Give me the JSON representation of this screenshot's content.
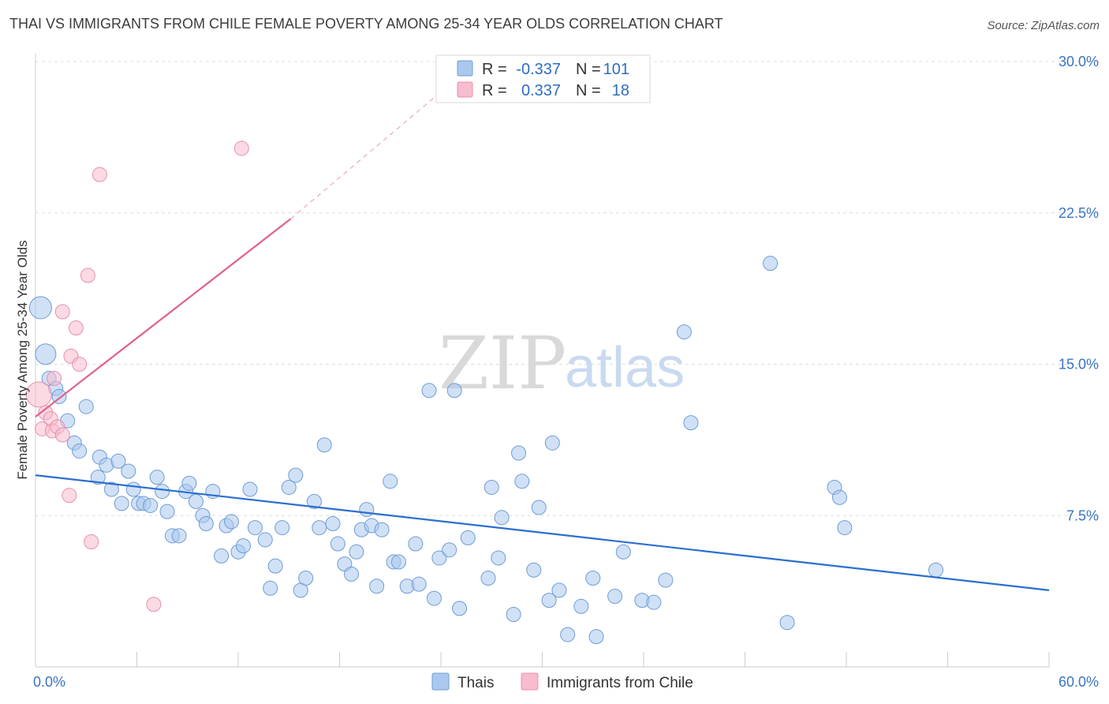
{
  "title": "THAI VS IMMIGRANTS FROM CHILE FEMALE POVERTY AMONG 25-34 YEAR OLDS CORRELATION CHART",
  "source": "Source: ZipAtlas.com",
  "watermark": {
    "zip": "ZIP",
    "atlas": "atlas"
  },
  "colors": {
    "thai_fill": "#aac8ee",
    "thai_stroke": "#6f9bd6",
    "thai_line": "#2a6fcf",
    "chile_fill": "#f7bccd",
    "chile_stroke": "#e890aa",
    "chile_line": "#e0628a",
    "grid": "#dddddd",
    "axis_text": "#3a74c4"
  },
  "legend": {
    "rows": [
      {
        "r_label": "R =",
        "r_value": "-0.337",
        "n_label": "N =",
        "n_value": "101"
      },
      {
        "r_label": "R =",
        "r_value": "0.337",
        "n_label": "N =",
        "n_value": "18"
      }
    ]
  },
  "bottom_legend": {
    "thai": "Thais",
    "chile": "Immigrants from Chile"
  },
  "chart_data": {
    "type": "scatter",
    "ylabel": "Female Poverty Among 25-34 Year Olds",
    "xlim": [
      0,
      60
    ],
    "ylim": [
      0,
      30
    ],
    "x_tick_labels": [
      "0.0%",
      "60.0%"
    ],
    "y_ticks": [
      7.5,
      15.0,
      22.5,
      30.0
    ],
    "y_tick_labels": [
      "7.5%",
      "15.0%",
      "22.5%",
      "30.0%"
    ],
    "grid": "horizontal dashed",
    "series": [
      {
        "name": "Thais",
        "trend": {
          "x": [
            0,
            60
          ],
          "y": [
            9.5,
            3.8
          ]
        },
        "points": [
          [
            0.3,
            17.8,
            14
          ],
          [
            0.6,
            15.5,
            13
          ],
          [
            0.8,
            14.3,
            9
          ],
          [
            1.2,
            13.8,
            9
          ],
          [
            1.4,
            13.4,
            9
          ],
          [
            1.9,
            12.2,
            9
          ],
          [
            2.3,
            11.1,
            9
          ],
          [
            2.6,
            10.7,
            9
          ],
          [
            3.0,
            12.9,
            9
          ],
          [
            3.7,
            9.4,
            9
          ],
          [
            3.8,
            10.4,
            9
          ],
          [
            4.2,
            10.0,
            9
          ],
          [
            4.5,
            8.8,
            9
          ],
          [
            4.9,
            10.2,
            9
          ],
          [
            5.1,
            8.1,
            9
          ],
          [
            5.5,
            9.7,
            9
          ],
          [
            5.8,
            8.8,
            9
          ],
          [
            6.1,
            8.1,
            9
          ],
          [
            6.4,
            8.1,
            9
          ],
          [
            6.8,
            8.0,
            9
          ],
          [
            7.2,
            9.4,
            9
          ],
          [
            7.5,
            8.7,
            9
          ],
          [
            7.8,
            7.7,
            9
          ],
          [
            8.1,
            6.5,
            9
          ],
          [
            8.5,
            6.5,
            9
          ],
          [
            8.9,
            8.7,
            9
          ],
          [
            9.1,
            9.1,
            9
          ],
          [
            9.5,
            8.2,
            9
          ],
          [
            9.9,
            7.5,
            9
          ],
          [
            10.1,
            7.1,
            9
          ],
          [
            10.5,
            8.7,
            9
          ],
          [
            11.0,
            5.5,
            9
          ],
          [
            11.3,
            7.0,
            9
          ],
          [
            11.6,
            7.2,
            9
          ],
          [
            12.0,
            5.7,
            9
          ],
          [
            12.3,
            6.0,
            9
          ],
          [
            12.7,
            8.8,
            9
          ],
          [
            13.0,
            6.9,
            9
          ],
          [
            13.6,
            6.3,
            9
          ],
          [
            13.9,
            3.9,
            9
          ],
          [
            14.2,
            5.0,
            9
          ],
          [
            14.6,
            6.9,
            9
          ],
          [
            15.0,
            8.9,
            9
          ],
          [
            15.4,
            9.5,
            9
          ],
          [
            15.7,
            3.8,
            9
          ],
          [
            16.0,
            4.4,
            9
          ],
          [
            16.5,
            8.2,
            9
          ],
          [
            16.8,
            6.9,
            9
          ],
          [
            17.1,
            11.0,
            9
          ],
          [
            17.6,
            7.1,
            9
          ],
          [
            17.9,
            6.1,
            9
          ],
          [
            18.3,
            5.1,
            9
          ],
          [
            18.7,
            4.6,
            9
          ],
          [
            19.0,
            5.7,
            9
          ],
          [
            19.3,
            6.8,
            9
          ],
          [
            19.6,
            7.8,
            9
          ],
          [
            19.9,
            7.0,
            9
          ],
          [
            20.2,
            4.0,
            9
          ],
          [
            20.5,
            6.8,
            9
          ],
          [
            21.0,
            9.2,
            9
          ],
          [
            21.2,
            5.2,
            9
          ],
          [
            21.5,
            5.2,
            9
          ],
          [
            22.0,
            4.0,
            9
          ],
          [
            22.5,
            6.1,
            9
          ],
          [
            22.7,
            4.1,
            9
          ],
          [
            23.3,
            13.7,
            9
          ],
          [
            23.6,
            3.4,
            9
          ],
          [
            23.9,
            5.4,
            9
          ],
          [
            24.5,
            5.8,
            9
          ],
          [
            24.8,
            13.7,
            9
          ],
          [
            25.1,
            2.9,
            9
          ],
          [
            25.6,
            6.4,
            9
          ],
          [
            26.8,
            4.4,
            9
          ],
          [
            27.0,
            8.9,
            9
          ],
          [
            27.4,
            5.4,
            9
          ],
          [
            27.6,
            7.4,
            9
          ],
          [
            28.3,
            2.6,
            9
          ],
          [
            28.6,
            10.6,
            9
          ],
          [
            28.8,
            9.2,
            9
          ],
          [
            29.5,
            4.8,
            9
          ],
          [
            29.8,
            7.9,
            9
          ],
          [
            30.4,
            3.3,
            9
          ],
          [
            30.6,
            11.1,
            9
          ],
          [
            31.0,
            3.8,
            9
          ],
          [
            31.5,
            1.6,
            9
          ],
          [
            32.3,
            3.0,
            9
          ],
          [
            33.0,
            4.4,
            9
          ],
          [
            33.2,
            1.5,
            9
          ],
          [
            34.3,
            3.5,
            9
          ],
          [
            34.8,
            5.7,
            9
          ],
          [
            35.9,
            3.3,
            9
          ],
          [
            36.6,
            3.2,
            9
          ],
          [
            37.3,
            4.3,
            9
          ],
          [
            38.4,
            16.6,
            9
          ],
          [
            38.8,
            12.1,
            9
          ],
          [
            43.5,
            20.0,
            9
          ],
          [
            44.5,
            2.2,
            9
          ],
          [
            47.3,
            8.9,
            9
          ],
          [
            47.6,
            8.4,
            9
          ],
          [
            47.9,
            6.9,
            9
          ],
          [
            53.3,
            4.8,
            9
          ]
        ]
      },
      {
        "name": "Immigrants from Chile",
        "trend": {
          "x": [
            0,
            15.1
          ],
          "y": [
            12.4,
            22.2
          ]
        },
        "trend_dashed": {
          "x": [
            15.1,
            24.0
          ],
          "y": [
            22.2,
            28.5
          ]
        },
        "points": [
          [
            0.2,
            13.5,
            16
          ],
          [
            0.4,
            11.8,
            9
          ],
          [
            0.6,
            12.6,
            9
          ],
          [
            0.9,
            12.3,
            9
          ],
          [
            1.0,
            11.7,
            9
          ],
          [
            1.1,
            14.3,
            9
          ],
          [
            1.3,
            11.9,
            9
          ],
          [
            1.6,
            11.5,
            9
          ],
          [
            1.6,
            17.6,
            9
          ],
          [
            2.0,
            8.5,
            9
          ],
          [
            2.1,
            15.4,
            9
          ],
          [
            2.4,
            16.8,
            9
          ],
          [
            2.6,
            15.0,
            9
          ],
          [
            3.1,
            19.4,
            9
          ],
          [
            3.3,
            6.2,
            9
          ],
          [
            3.8,
            24.4,
            9
          ],
          [
            7.0,
            3.1,
            9
          ],
          [
            12.2,
            25.7,
            9
          ]
        ]
      }
    ]
  }
}
